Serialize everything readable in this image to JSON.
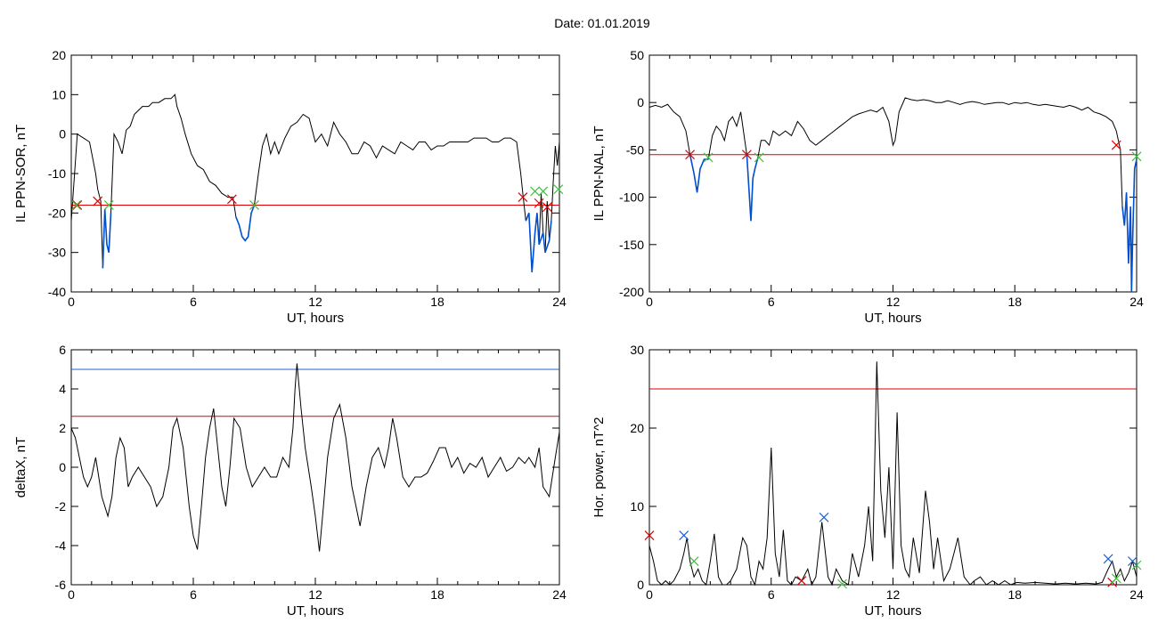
{
  "title": "Date:  01.01.2019",
  "colors": {
    "data": "#000000",
    "threshold": "#e00000",
    "event": "#0050d0",
    "threshold_upper": "#2060d0",
    "start_marker": "#e00000",
    "end_marker": "#40c040",
    "peak_marker": "#2060d0"
  },
  "chart_data": [
    {
      "type": "line",
      "xlabel": "UT, hours",
      "ylabel": "IL PPN-SOR, nT",
      "xlim": [
        0,
        24
      ],
      "ylim": [
        -40,
        20
      ],
      "xticks": [
        0,
        6,
        12,
        18,
        24
      ],
      "yticks": [
        -40,
        -30,
        -20,
        -10,
        0,
        10,
        20
      ],
      "threshold": -18,
      "series": [
        {
          "x": [
            0,
            0.3,
            0.6,
            0.9,
            1.2,
            1.3,
            1.45,
            1.55,
            1.65,
            1.75,
            1.85,
            1.95,
            2.1,
            2.3,
            2.5,
            2.7,
            2.9,
            3.1,
            3.3,
            3.5,
            3.8,
            4.0,
            4.3,
            4.6,
            4.9,
            5.1,
            5.2,
            5.4,
            5.6,
            5.9,
            6.2,
            6.5,
            6.8,
            7.1,
            7.4,
            7.7,
            7.95,
            8.1,
            8.25,
            8.4,
            8.55,
            8.7,
            8.85,
            9.0,
            9.2,
            9.4,
            9.6,
            9.8,
            10.0,
            10.2,
            10.5,
            10.8,
            11.1,
            11.4,
            11.7,
            12.0,
            12.3,
            12.6,
            12.9,
            13.2,
            13.5,
            13.8,
            14.1,
            14.4,
            14.7,
            15.0,
            15.3,
            15.6,
            15.9,
            16.2,
            16.5,
            16.8,
            17.1,
            17.4,
            17.7,
            18.0,
            18.3,
            18.6,
            18.9,
            19.2,
            19.5,
            19.8,
            20.1,
            20.4,
            20.7,
            21.0,
            21.3,
            21.6,
            21.9,
            22.1,
            22.2,
            22.35,
            22.5,
            22.65,
            22.8,
            22.9,
            23.0,
            23.1,
            23.2,
            23.3,
            23.4,
            23.5,
            23.6,
            23.7,
            23.8,
            23.9,
            24.0
          ],
          "y": [
            -22,
            0,
            -1,
            -2,
            -10,
            -14,
            -17,
            -34,
            -19,
            -28,
            -30,
            -20,
            0,
            -2,
            -5,
            1,
            2,
            5,
            6,
            7,
            7,
            8,
            8,
            9,
            9,
            10,
            7,
            4,
            0,
            -5,
            -8,
            -9,
            -12,
            -13,
            -15,
            -16,
            -16,
            -21,
            -23,
            -26,
            -27,
            -26,
            -20,
            -18,
            -10,
            -3,
            0,
            -5,
            -2,
            -5,
            -1,
            2,
            3,
            5,
            4,
            -2,
            0,
            -3,
            3,
            0,
            -2,
            -5,
            -5,
            -2,
            -3,
            -6,
            -3,
            -4,
            -5,
            -2,
            -3,
            -4,
            -2,
            -2,
            -4,
            -3,
            -3,
            -2,
            -2,
            -2,
            -2,
            -1,
            -1,
            -1,
            -2,
            -2,
            -1,
            -1,
            -2,
            -10,
            -15,
            -22,
            -20,
            -35,
            -25,
            -20,
            -28,
            -15,
            -25,
            -30,
            -17,
            -27,
            -22,
            -12,
            -3,
            -8,
            -2
          ]
        }
      ],
      "markers": {
        "start": [
          [
            0.3,
            -18
          ],
          [
            1.3,
            -17
          ],
          [
            7.9,
            -16.5
          ],
          [
            22.2,
            -16
          ],
          [
            23.0,
            -17.5
          ],
          [
            23.4,
            -18.5
          ]
        ],
        "end": [
          [
            0.25,
            -18
          ],
          [
            1.85,
            -18
          ],
          [
            9.0,
            -18
          ],
          [
            22.8,
            -14.5
          ],
          [
            23.2,
            -14.5
          ],
          [
            23.95,
            -14
          ]
        ]
      },
      "event_segments": [
        [
          0.0,
          0.6
        ],
        [
          1.3,
          2.0
        ],
        [
          7.9,
          9.1
        ],
        [
          22.1,
          24.0
        ]
      ]
    },
    {
      "type": "line",
      "xlabel": "UT, hours",
      "ylabel": "IL PPN-NAL, nT",
      "xlim": [
        0,
        24
      ],
      "ylim": [
        -200,
        50
      ],
      "xticks": [
        0,
        6,
        12,
        18,
        24
      ],
      "yticks": [
        -200,
        -150,
        -100,
        -50,
        0,
        50
      ],
      "threshold": -55,
      "series": [
        {
          "x": [
            0,
            0.3,
            0.6,
            0.9,
            1.2,
            1.5,
            1.8,
            2.0,
            2.2,
            2.35,
            2.5,
            2.7,
            2.9,
            3.1,
            3.3,
            3.5,
            3.7,
            3.9,
            4.1,
            4.3,
            4.5,
            4.7,
            4.8,
            4.9,
            5.0,
            5.1,
            5.2,
            5.35,
            5.5,
            5.7,
            5.9,
            6.1,
            6.4,
            6.7,
            7.0,
            7.3,
            7.6,
            7.9,
            8.2,
            8.5,
            8.8,
            9.1,
            9.4,
            9.7,
            10.0,
            10.3,
            10.6,
            10.9,
            11.2,
            11.5,
            11.8,
            12.0,
            12.1,
            12.3,
            12.6,
            12.9,
            13.2,
            13.5,
            13.8,
            14.1,
            14.4,
            14.7,
            15.0,
            15.3,
            15.6,
            15.9,
            16.2,
            16.5,
            16.8,
            17.1,
            17.4,
            17.7,
            18.0,
            18.3,
            18.6,
            18.9,
            19.2,
            19.5,
            19.8,
            20.1,
            20.4,
            20.7,
            21.0,
            21.3,
            21.6,
            21.9,
            22.2,
            22.5,
            22.8,
            23.0,
            23.1,
            23.2,
            23.3,
            23.4,
            23.5,
            23.6,
            23.7,
            23.75,
            23.8,
            23.9,
            24.0
          ],
          "y": [
            -5,
            -3,
            -5,
            -2,
            -10,
            -15,
            -30,
            -55,
            -75,
            -95,
            -70,
            -60,
            -60,
            -35,
            -25,
            -30,
            -40,
            -20,
            -15,
            -25,
            -10,
            -40,
            -55,
            -90,
            -125,
            -80,
            -70,
            -58,
            -40,
            -40,
            -45,
            -30,
            -35,
            -30,
            -35,
            -20,
            -28,
            -40,
            -45,
            -40,
            -35,
            -30,
            -25,
            -20,
            -15,
            -12,
            -10,
            -8,
            -10,
            -5,
            -20,
            -45,
            -40,
            -10,
            5,
            3,
            2,
            3,
            2,
            0,
            0,
            2,
            0,
            -2,
            0,
            1,
            0,
            -2,
            -1,
            0,
            0,
            -2,
            0,
            -1,
            0,
            -2,
            -3,
            -2,
            -3,
            -4,
            -5,
            -3,
            -5,
            -8,
            -5,
            -10,
            -12,
            -15,
            -20,
            -30,
            -40,
            -50,
            -110,
            -130,
            -95,
            -170,
            -110,
            -200,
            -150,
            -70,
            -60
          ]
        }
      ],
      "markers": {
        "start": [
          [
            2.0,
            -55
          ],
          [
            4.8,
            -55
          ],
          [
            23.0,
            -45
          ]
        ],
        "end": [
          [
            2.9,
            -58
          ],
          [
            5.4,
            -58
          ],
          [
            24.0,
            -57
          ]
        ]
      },
      "event_segments": [
        [
          1.9,
          3.0
        ],
        [
          4.7,
          5.5
        ],
        [
          22.9,
          24.0
        ]
      ]
    },
    {
      "type": "line",
      "xlabel": "UT, hours",
      "ylabel": "deltaX, nT",
      "xlim": [
        0,
        24
      ],
      "ylim": [
        -6,
        6
      ],
      "xticks": [
        0,
        6,
        12,
        18,
        24
      ],
      "yticks": [
        -6,
        -4,
        -2,
        0,
        2,
        4,
        6
      ],
      "threshold": 2.6,
      "threshold_upper": 5.0,
      "series": [
        {
          "x": [
            0,
            0.2,
            0.4,
            0.6,
            0.8,
            1.0,
            1.2,
            1.5,
            1.8,
            2.0,
            2.2,
            2.4,
            2.6,
            2.8,
            3.0,
            3.3,
            3.6,
            3.9,
            4.2,
            4.5,
            4.8,
            5.0,
            5.2,
            5.5,
            5.8,
            6.0,
            6.2,
            6.4,
            6.6,
            6.8,
            7.0,
            7.2,
            7.4,
            7.6,
            7.8,
            8.0,
            8.3,
            8.6,
            8.9,
            9.2,
            9.5,
            9.8,
            10.1,
            10.4,
            10.7,
            10.9,
            11.0,
            11.1,
            11.3,
            11.5,
            11.8,
            12.0,
            12.2,
            12.4,
            12.6,
            12.9,
            13.2,
            13.5,
            13.8,
            14.0,
            14.2,
            14.5,
            14.8,
            15.1,
            15.4,
            15.6,
            15.8,
            16.0,
            16.3,
            16.6,
            16.9,
            17.2,
            17.5,
            17.8,
            18.1,
            18.4,
            18.7,
            19.0,
            19.3,
            19.6,
            19.9,
            20.2,
            20.5,
            20.8,
            21.1,
            21.4,
            21.7,
            22.0,
            22.3,
            22.5,
            22.8,
            23.0,
            23.2,
            23.5,
            23.8,
            24.0
          ],
          "y": [
            2.0,
            1.5,
            0.5,
            -0.5,
            -1.0,
            -0.5,
            0.5,
            -1.5,
            -2.5,
            -1.5,
            0.5,
            1.5,
            1.0,
            -1.0,
            -0.5,
            0.0,
            -0.5,
            -1.0,
            -2.0,
            -1.5,
            0.0,
            2.0,
            2.5,
            1.0,
            -2.0,
            -3.5,
            -4.2,
            -2.0,
            0.5,
            2.0,
            3.0,
            1.0,
            -1.0,
            -2.0,
            0.0,
            2.5,
            2.0,
            0.0,
            -1.0,
            -0.5,
            0.0,
            -0.5,
            -0.5,
            0.5,
            0.0,
            2.0,
            4.0,
            5.3,
            3.0,
            1.0,
            -1.0,
            -2.5,
            -4.3,
            -2.0,
            0.5,
            2.5,
            3.2,
            1.5,
            -1.0,
            -2.0,
            -3.0,
            -1.0,
            0.5,
            1.0,
            0.0,
            1.0,
            2.5,
            1.5,
            -0.5,
            -1.0,
            -0.5,
            -0.5,
            -0.3,
            0.3,
            1.0,
            1.0,
            0.0,
            0.5,
            -0.3,
            0.2,
            0.0,
            0.5,
            -0.5,
            0.0,
            0.5,
            -0.2,
            0.0,
            0.5,
            0.2,
            0.5,
            0.0,
            1.0,
            -1.0,
            -1.5,
            0.5,
            1.8
          ]
        }
      ]
    },
    {
      "type": "line",
      "xlabel": "UT, hours",
      "ylabel": "Hor. power, nT^2",
      "xlim": [
        0,
        24
      ],
      "ylim": [
        0,
        30
      ],
      "xticks": [
        0,
        6,
        12,
        18,
        24
      ],
      "yticks": [
        0,
        10,
        20,
        30
      ],
      "threshold": 25,
      "series": [
        {
          "x": [
            0,
            0.2,
            0.4,
            0.6,
            0.8,
            1.0,
            1.2,
            1.5,
            1.7,
            1.85,
            2.0,
            2.2,
            2.4,
            2.6,
            2.8,
            3.0,
            3.2,
            3.4,
            3.6,
            3.8,
            4.0,
            4.3,
            4.6,
            4.8,
            5.0,
            5.2,
            5.4,
            5.6,
            5.8,
            6.0,
            6.2,
            6.4,
            6.6,
            6.8,
            7.0,
            7.2,
            7.5,
            7.8,
            8.0,
            8.2,
            8.5,
            8.8,
            9.0,
            9.2,
            9.5,
            9.8,
            10.0,
            10.3,
            10.6,
            10.8,
            11.0,
            11.2,
            11.4,
            11.6,
            11.8,
            12.0,
            12.2,
            12.4,
            12.6,
            12.8,
            13.0,
            13.3,
            13.6,
            13.8,
            14.0,
            14.2,
            14.5,
            14.8,
            15.0,
            15.2,
            15.5,
            15.8,
            16.0,
            16.3,
            16.6,
            16.9,
            17.2,
            17.5,
            17.8,
            18.1,
            18.5,
            19.0,
            19.5,
            20.0,
            20.5,
            21.0,
            21.5,
            22.0,
            22.3,
            22.6,
            22.8,
            23.0,
            23.2,
            23.4,
            23.6,
            23.8,
            24.0
          ],
          "y": [
            5,
            3,
            0.5,
            0,
            0.5,
            0,
            0.5,
            2,
            4,
            6,
            3,
            1,
            2,
            0.5,
            0,
            3,
            6.5,
            1,
            0,
            0,
            0.5,
            2,
            6,
            5,
            1,
            0,
            3,
            2,
            6,
            17.5,
            4,
            1,
            7,
            0.5,
            0,
            1,
            0.5,
            2,
            0,
            1,
            8,
            1,
            0,
            2,
            0.5,
            0,
            4,
            1,
            5,
            10,
            3,
            28.5,
            12,
            6,
            15,
            2,
            22,
            5,
            2,
            1,
            6,
            1.5,
            12,
            8,
            2,
            6,
            0.5,
            2,
            4,
            6,
            1,
            0,
            0.5,
            1,
            0,
            0.5,
            0,
            0.5,
            0,
            0.3,
            0.2,
            0.3,
            0.2,
            0.1,
            0.2,
            0.1,
            0.2,
            0.1,
            0.3,
            2,
            3,
            1,
            2,
            0.5,
            1.5,
            3,
            1
          ]
        }
      ],
      "markers": {
        "start": [
          [
            0.0,
            6.3
          ],
          [
            7.5,
            0.5
          ],
          [
            22.8,
            0.3
          ]
        ],
        "end": [
          [
            2.2,
            3
          ],
          [
            9.5,
            0.1
          ],
          [
            23.0,
            0.8
          ],
          [
            24.0,
            2.5
          ]
        ],
        "peak": [
          [
            1.7,
            6.3
          ],
          [
            8.6,
            8.6
          ],
          [
            22.6,
            3.3
          ],
          [
            23.8,
            3
          ]
        ]
      }
    }
  ]
}
